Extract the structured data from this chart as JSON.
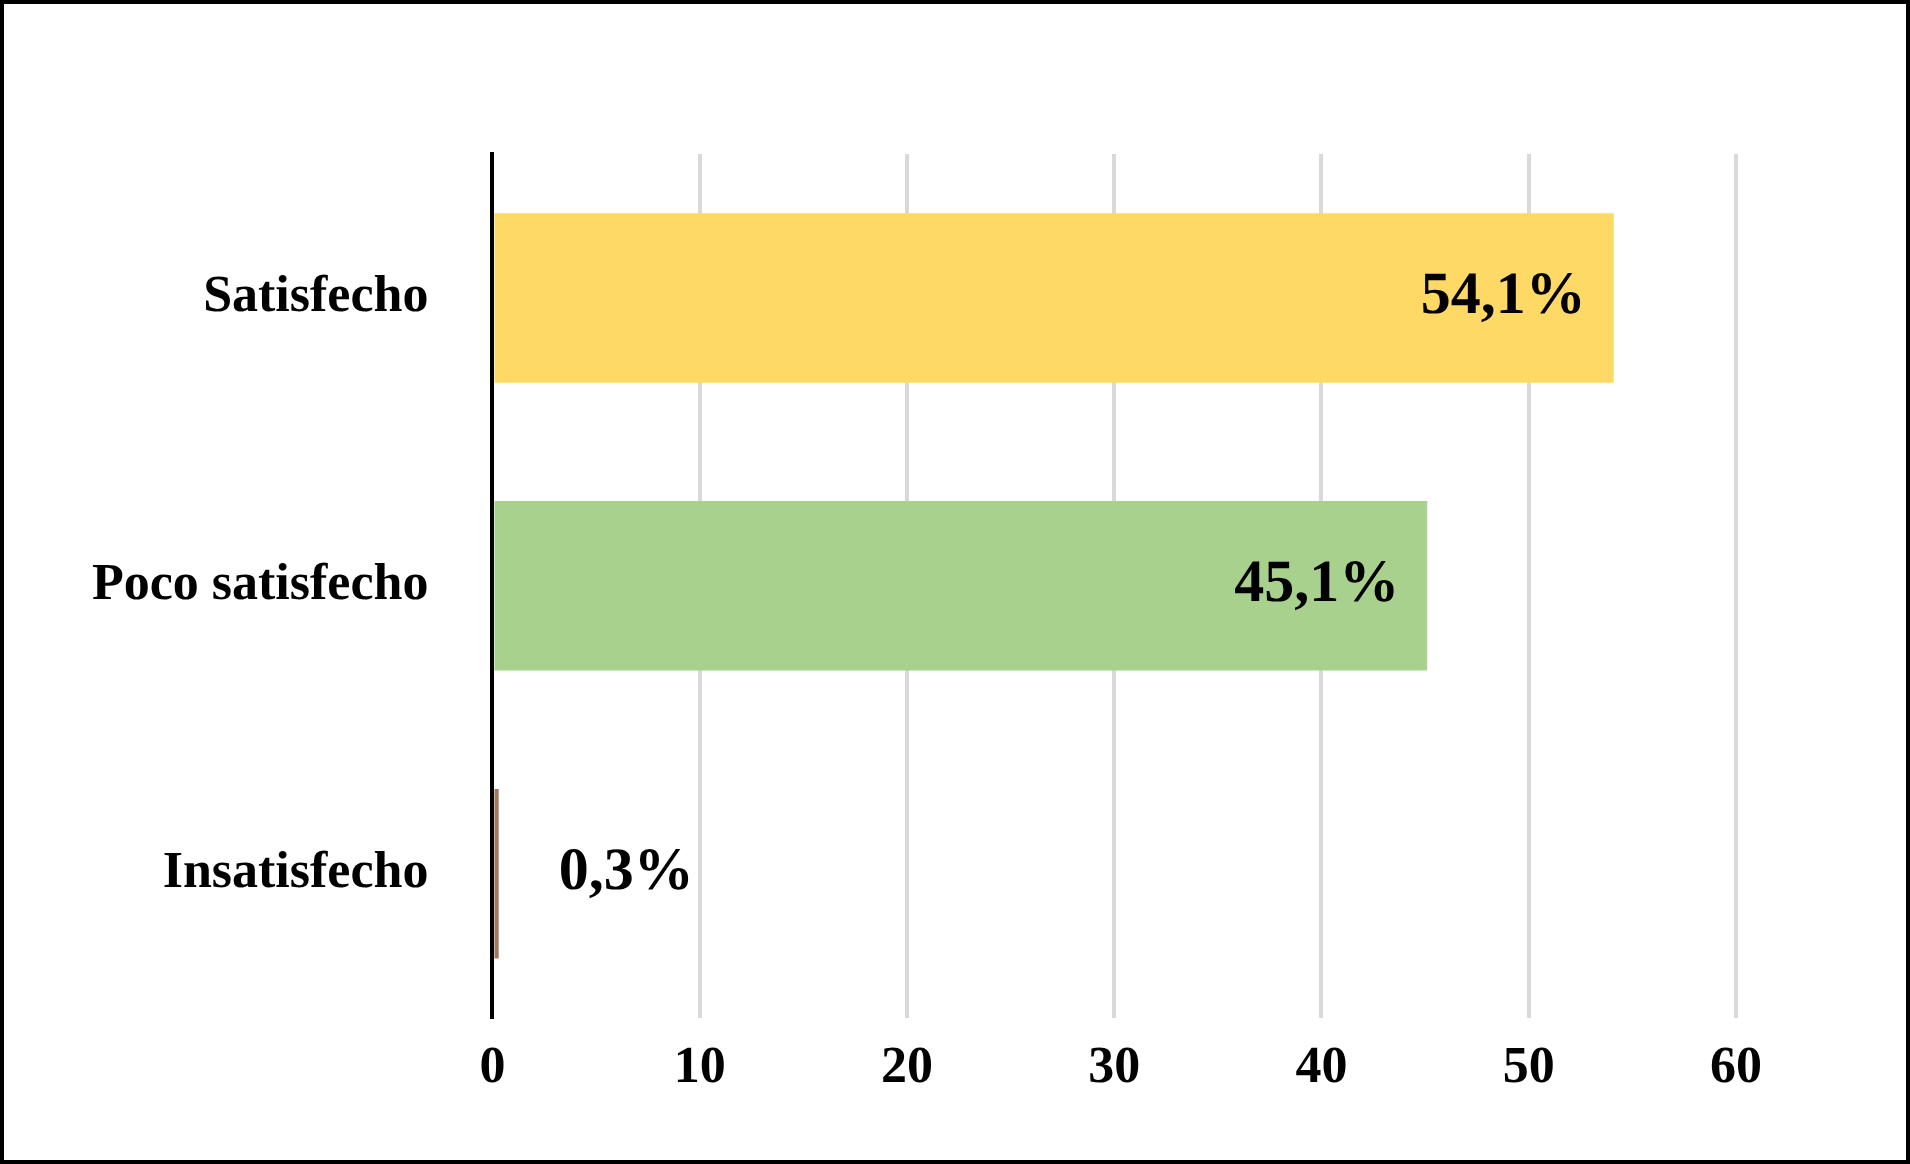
{
  "chart_data": {
    "type": "bar",
    "orientation": "horizontal",
    "categories": [
      "Satisfecho",
      "Poco satisfecho",
      "Insatisfecho"
    ],
    "values": [
      54.1,
      45.1,
      0.3
    ],
    "colors": [
      "#ffd966",
      "#a9d18e",
      "#a0785a"
    ],
    "value_labels": [
      "54,1%",
      "45,1%",
      "0,3%"
    ],
    "xlim": [
      0,
      60
    ],
    "xticks": [
      0,
      10,
      20,
      30,
      40,
      50,
      60
    ],
    "grid": "x",
    "legend": false
  }
}
